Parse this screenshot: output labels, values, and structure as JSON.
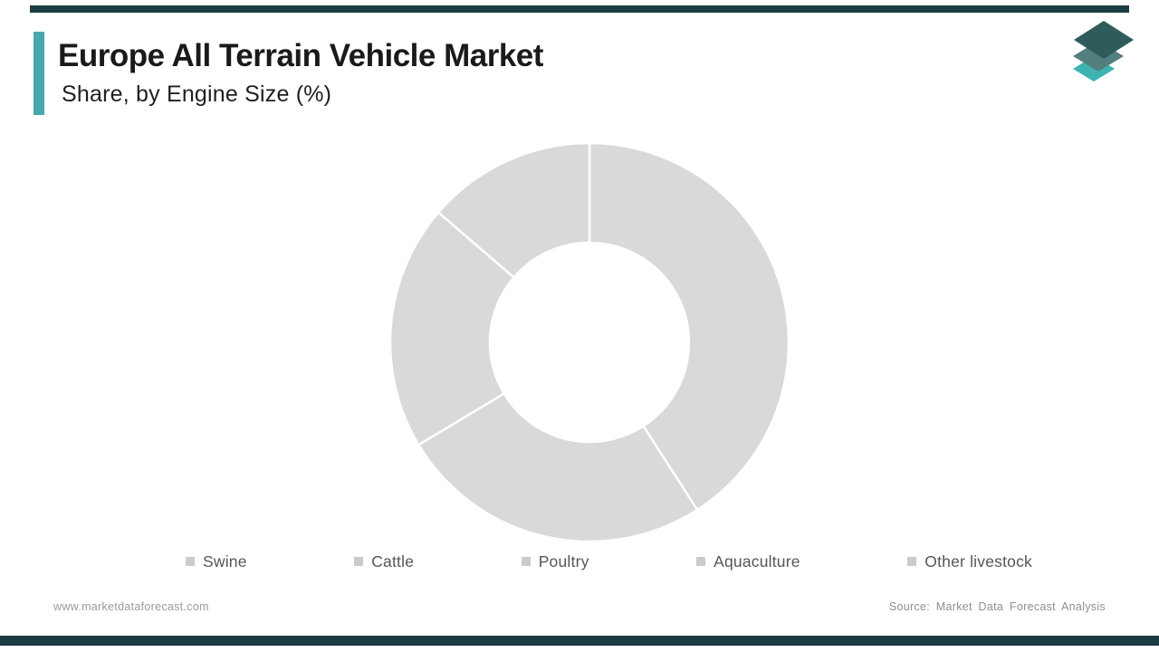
{
  "page": {
    "title": "Europe All Terrain Vehicle Market",
    "subtitle": "Share, by Engine Size (%)"
  },
  "brand": {
    "accent_color": "#48a8ab",
    "edge_bar_color": "#1b3c41",
    "logo_colors": [
      "#2d5c5b",
      "#52807e",
      "#3fb3b0"
    ]
  },
  "legend": {
    "items": [
      {
        "label": "Swine"
      },
      {
        "label": "Cattle"
      },
      {
        "label": "Poultry"
      },
      {
        "label": "Aquaculture"
      },
      {
        "label": "Other livestock"
      }
    ],
    "marker_color": "#cbcbcb",
    "text_color": "#565656"
  },
  "footer": {
    "website": "www.marketdataforecast.com",
    "source": "Source: Market Data Forecast Analysis"
  },
  "chart_data": {
    "type": "pie",
    "donut": true,
    "title": "Europe All Terrain Vehicle Market Share, by Engine Size (%)",
    "categories": [
      "Swine",
      "Cattle",
      "Poultry",
      "Aquaculture",
      "Other livestock"
    ],
    "values": [
      40.9,
      25.5,
      19.9,
      13.7,
      0
    ],
    "unit": "%",
    "start_angle_deg": 0,
    "direction": "clockwise",
    "inner_radius_ratio": 0.5,
    "segment_color": "#d9d9d9",
    "divider_color": "#ffffff",
    "data_labels_shown": false,
    "legend_position": "bottom"
  }
}
